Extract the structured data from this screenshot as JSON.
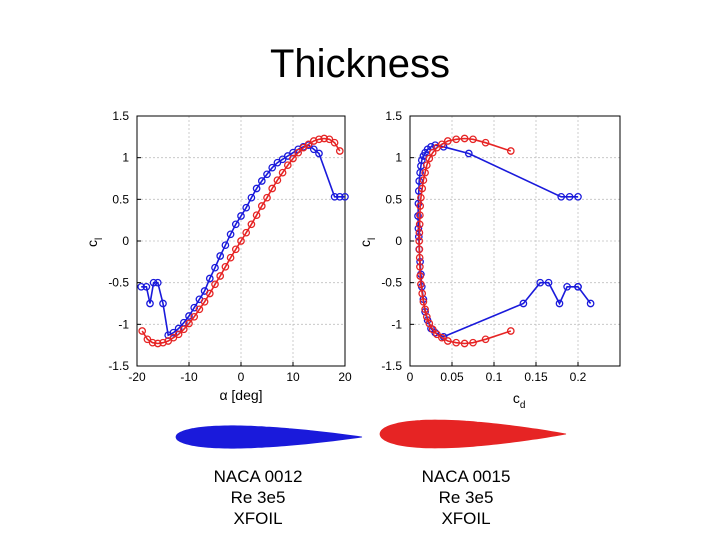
{
  "slide": {
    "title": "Thickness"
  },
  "colors": {
    "naca0012": "#1a1adb",
    "naca0015": "#e62424",
    "grid": "#c0c0c0"
  },
  "chart_data": [
    {
      "type": "line",
      "title": "",
      "xlabel": "α [deg]",
      "ylabel": "c_l",
      "xlim": [
        -20,
        20
      ],
      "ylim": [
        -1.5,
        1.5
      ],
      "xticks": [
        "-20",
        "-10",
        "0",
        "10",
        "20"
      ],
      "yticks": [
        "1.5",
        "1",
        "0.5",
        "0",
        "-0.5",
        "-1",
        "-1.5"
      ],
      "grid": true,
      "series": [
        {
          "name": "NACA 0012",
          "x": [
            -19.2,
            -18.2,
            -17.5,
            -16.8,
            -16.0,
            -15.0,
            -14.0,
            -13.0,
            -12.0,
            -11.0,
            -10.0,
            -9.0,
            -8.0,
            -7.0,
            -6.0,
            -5.0,
            -4.0,
            -3.0,
            -2.0,
            -1.0,
            0.0,
            1.0,
            2.0,
            3.0,
            4.0,
            5.0,
            6.0,
            7.0,
            8.0,
            9.0,
            10.0,
            11.0,
            12.0,
            13.0,
            14.0,
            15.0,
            18.0,
            19.0,
            20.0
          ],
          "y": [
            -0.55,
            -0.55,
            -0.75,
            -0.5,
            -0.5,
            -0.75,
            -1.13,
            -1.1,
            -1.05,
            -0.98,
            -0.9,
            -0.8,
            -0.7,
            -0.6,
            -0.45,
            -0.32,
            -0.18,
            -0.05,
            0.08,
            0.2,
            0.3,
            0.4,
            0.52,
            0.63,
            0.72,
            0.8,
            0.88,
            0.94,
            0.98,
            1.02,
            1.06,
            1.1,
            1.13,
            1.15,
            1.1,
            1.05,
            0.53,
            0.53,
            0.53
          ]
        },
        {
          "name": "NACA 0015",
          "x": [
            -19.0,
            -18.0,
            -17.0,
            -16.0,
            -15.0,
            -14.0,
            -13.0,
            -12.0,
            -11.0,
            -10.0,
            -9.0,
            -8.0,
            -7.0,
            -6.0,
            -5.0,
            -4.0,
            -3.0,
            -2.0,
            -1.0,
            0.0,
            1.0,
            2.0,
            3.0,
            4.0,
            5.0,
            6.0,
            7.0,
            8.0,
            9.0,
            10.0,
            11.0,
            12.0,
            13.0,
            14.0,
            15.0,
            16.0,
            17.0,
            18.0,
            19.0
          ],
          "y": [
            -1.08,
            -1.18,
            -1.22,
            -1.23,
            -1.22,
            -1.2,
            -1.16,
            -1.12,
            -1.06,
            -0.99,
            -0.91,
            -0.82,
            -0.73,
            -0.63,
            -0.52,
            -0.42,
            -0.31,
            -0.2,
            -0.1,
            0.0,
            0.1,
            0.2,
            0.31,
            0.42,
            0.52,
            0.63,
            0.73,
            0.82,
            0.91,
            0.99,
            1.06,
            1.12,
            1.16,
            1.2,
            1.22,
            1.23,
            1.22,
            1.18,
            1.08
          ]
        }
      ]
    },
    {
      "type": "line",
      "title": "",
      "xlabel": "c_d",
      "ylabel": "c_l",
      "xlim": [
        0,
        0.25
      ],
      "ylim": [
        -1.5,
        1.5
      ],
      "xticks": [
        "0",
        "0.05",
        "0.1",
        "0.15",
        "0.2"
      ],
      "yticks": [
        "1.5",
        "1",
        "0.5",
        "0",
        "-0.5",
        "-1",
        "-1.5"
      ],
      "grid": true,
      "series": [
        {
          "name": "NACA 0012",
          "x": [
            0.215,
            0.2,
            0.2,
            0.187,
            0.178,
            0.165,
            0.155,
            0.135,
            0.04,
            0.03,
            0.025,
            0.021,
            0.018,
            0.016,
            0.014,
            0.013,
            0.012,
            0.011,
            0.0105,
            0.01,
            0.0095,
            0.01,
            0.0105,
            0.011,
            0.012,
            0.013,
            0.014,
            0.016,
            0.018,
            0.021,
            0.025,
            0.03,
            0.04,
            0.07,
            0.18,
            0.19,
            0.2
          ],
          "y": [
            -0.75,
            -0.55,
            -0.55,
            -0.55,
            -0.75,
            -0.5,
            -0.5,
            -0.75,
            -1.15,
            -1.1,
            -1.05,
            -0.95,
            -0.85,
            -0.7,
            -0.55,
            -0.4,
            -0.25,
            -0.1,
            0.05,
            0.15,
            0.3,
            0.45,
            0.6,
            0.72,
            0.82,
            0.9,
            0.97,
            1.02,
            1.06,
            1.1,
            1.13,
            1.15,
            1.13,
            1.05,
            0.53,
            0.53,
            0.53
          ]
        },
        {
          "name": "NACA 0015",
          "x": [
            0.12,
            0.09,
            0.075,
            0.065,
            0.055,
            0.045,
            0.038,
            0.032,
            0.027,
            0.023,
            0.02,
            0.018,
            0.016,
            0.0145,
            0.013,
            0.0122,
            0.0118,
            0.0115,
            0.0112,
            0.011,
            0.0112,
            0.0115,
            0.0118,
            0.0122,
            0.013,
            0.0145,
            0.016,
            0.018,
            0.02,
            0.023,
            0.027,
            0.032,
            0.038,
            0.045,
            0.055,
            0.065,
            0.075,
            0.09,
            0.12
          ],
          "y": [
            -1.08,
            -1.18,
            -1.22,
            -1.23,
            -1.22,
            -1.2,
            -1.16,
            -1.12,
            -1.06,
            -0.99,
            -0.91,
            -0.82,
            -0.73,
            -0.63,
            -0.52,
            -0.42,
            -0.31,
            -0.2,
            -0.1,
            0.0,
            0.1,
            0.2,
            0.31,
            0.42,
            0.52,
            0.63,
            0.73,
            0.82,
            0.91,
            0.99,
            1.06,
            1.12,
            1.16,
            1.2,
            1.22,
            1.23,
            1.22,
            1.18,
            1.08
          ]
        }
      ]
    }
  ],
  "airfoils": [
    {
      "name": "NACA 0012",
      "thickness": 0.12,
      "color": "#1a1adb"
    },
    {
      "name": "NACA 0015",
      "thickness": 0.15,
      "color": "#e62424"
    }
  ],
  "captions": [
    {
      "line1": "NACA 0012",
      "line2": "Re 3e5",
      "line3": "XFOIL"
    },
    {
      "line1": "NACA 0015",
      "line2": "Re 3e5",
      "line3": "XFOIL"
    }
  ]
}
